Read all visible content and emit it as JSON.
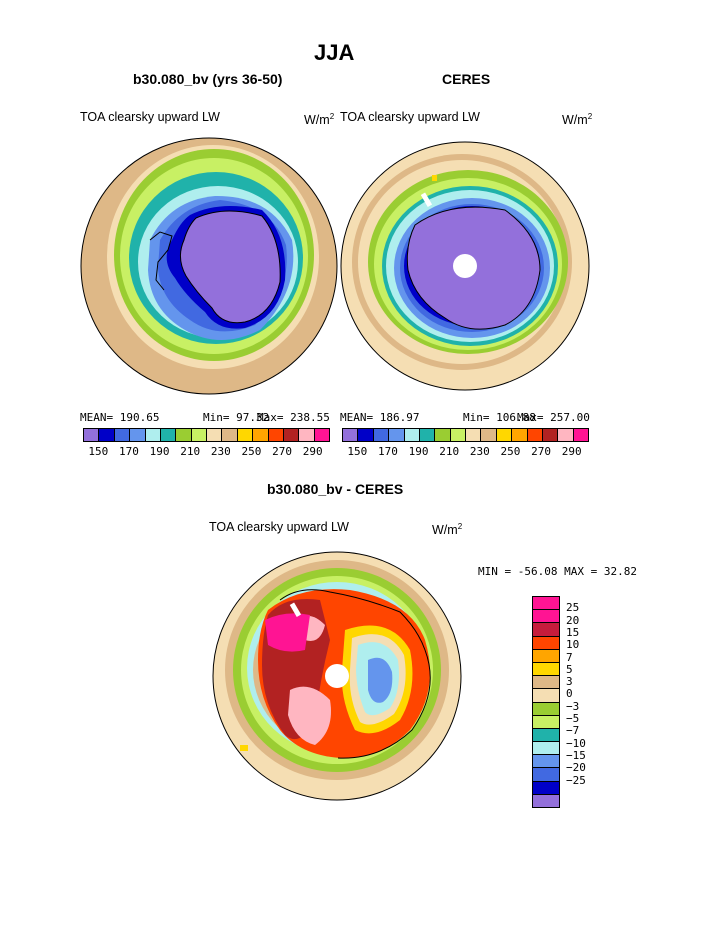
{
  "page_title": "JJA",
  "chart_data": [
    {
      "type": "heatmap",
      "projection": "south-polar-stereographic",
      "title": "b30.080_bv (yrs 36-50)",
      "left_label": "TOA clearsky upward LW",
      "units": "W/m",
      "units_sup": "2",
      "stats": {
        "mean": "MEAN= 190.65",
        "min": "Min=  97.32",
        "max": "Max= 238.55"
      },
      "contour_levels": [
        150,
        160,
        170,
        180,
        190,
        200,
        210,
        220,
        230,
        240,
        250,
        260,
        270,
        280,
        290
      ],
      "tick_labels": [
        "150",
        "170",
        "190",
        "210",
        "230",
        "250",
        "270",
        "290"
      ],
      "colors": [
        "#9370db",
        "#0000c8",
        "#4169e1",
        "#6495ed",
        "#afeeee",
        "#20b2aa",
        "#9acd32",
        "#c8f064",
        "#f5deb3",
        "#deb887",
        "#ffd700",
        "#ffa500",
        "#ff4500",
        "#b22222",
        "#ffb6c1",
        "#ff1493"
      ]
    },
    {
      "type": "heatmap",
      "projection": "south-polar-stereographic",
      "title": "CERES",
      "left_label": "TOA clearsky upward LW",
      "units": "W/m",
      "units_sup": "2",
      "stats": {
        "mean": "MEAN= 186.97",
        "min": "Min= 106.88",
        "max": "Max= 257.00"
      },
      "contour_levels": [
        150,
        160,
        170,
        180,
        190,
        200,
        210,
        220,
        230,
        240,
        250,
        260,
        270,
        280,
        290
      ],
      "tick_labels": [
        "150",
        "170",
        "190",
        "210",
        "230",
        "250",
        "270",
        "290"
      ],
      "colors": [
        "#9370db",
        "#0000c8",
        "#4169e1",
        "#6495ed",
        "#afeeee",
        "#20b2aa",
        "#9acd32",
        "#c8f064",
        "#f5deb3",
        "#deb887",
        "#ffd700",
        "#ffa500",
        "#ff4500",
        "#b22222",
        "#ffb6c1",
        "#ff1493"
      ]
    },
    {
      "type": "heatmap",
      "projection": "south-polar-stereographic",
      "title": "b30.080_bv - CERES",
      "left_label": "TOA clearsky upward LW",
      "units": "W/m",
      "units_sup": "2",
      "stats": {
        "minmax": "MIN = -56.08 MAX =  32.82"
      },
      "contour_levels": [
        -25,
        -20,
        -15,
        -10,
        -7,
        -5,
        -3,
        0,
        3,
        5,
        7,
        10,
        15,
        20,
        25
      ],
      "tick_labels": [
        "25",
        "20",
        "15",
        "10",
        "7",
        "5",
        "3",
        "0",
        "−3",
        "−5",
        "−7",
        "−10",
        "−15",
        "−20",
        "−25"
      ],
      "colors_top_to_bottom": [
        "#ff1493",
        "#ff1493",
        "#c71c3c",
        "#ff4500",
        "#ffa500",
        "#ffd700",
        "#deb887",
        "#f5deb3",
        "#9acd32",
        "#c8f064",
        "#20b2aa",
        "#afeeee",
        "#6495ed",
        "#4169e1",
        "#0000c8",
        "#9370db"
      ]
    }
  ]
}
